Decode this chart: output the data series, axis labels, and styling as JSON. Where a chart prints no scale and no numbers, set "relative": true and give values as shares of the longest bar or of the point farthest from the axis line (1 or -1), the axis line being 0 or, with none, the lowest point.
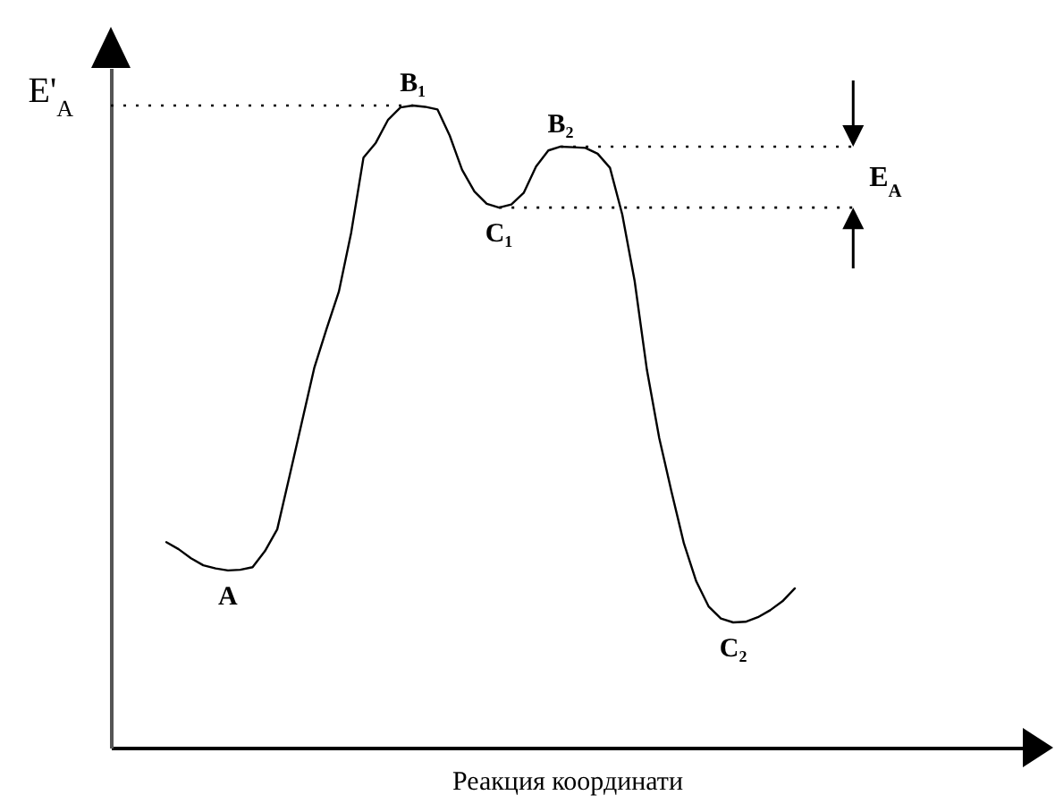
{
  "chart_data": {
    "type": "line",
    "relative": true,
    "xlabel": "Реакция координати",
    "color": "#000000",
    "line_style": "solid",
    "categories": [
      null,
      null,
      null,
      null,
      null,
      null,
      null,
      null,
      null,
      null,
      null,
      null,
      null,
      null,
      null,
      null,
      null,
      null,
      null,
      null,
      null,
      null,
      null,
      null,
      null,
      null,
      null,
      null,
      null,
      null,
      null,
      null,
      null,
      null,
      null,
      null,
      null,
      null,
      null,
      null,
      null,
      null,
      null,
      null,
      null,
      null,
      null,
      null,
      null,
      null,
      null,
      null,
      null,
      null,
      null,
      null,
      null,
      null,
      null,
      null,
      null,
      null,
      null,
      null,
      null,
      null,
      null,
      null,
      null,
      null,
      null,
      null,
      null,
      null
    ],
    "values": [
      null,
      null,
      null,
      null,
      0.32,
      0.309,
      0.295,
      0.284,
      0.279,
      0.276,
      0.277,
      0.281,
      0.306,
      0.34,
      0.423,
      0.507,
      0.591,
      0.652,
      0.71,
      0.802,
      0.919,
      0.942,
      0.978,
      0.997,
      1,
      0.998,
      0.994,
      0.953,
      0.9,
      0.866,
      0.847,
      0.841,
      0.846,
      0.864,
      0.905,
      0.93,
      0.936,
      0.935,
      0.934,
      0.925,
      0.903,
      0.83,
      0.727,
      0.588,
      0.482,
      0.398,
      0.318,
      0.259,
      0.22,
      0.201,
      0.195,
      0.196,
      0.203,
      0.214,
      0.228,
      0.248,
      null,
      null,
      null,
      null,
      null,
      null,
      null,
      null,
      null,
      null,
      null,
      null,
      null,
      null,
      null,
      null,
      null,
      null
    ],
    "ref_lines": [
      {
        "axis": "y",
        "value": 1,
        "label": "E'$_{A}$",
        "color": "#000000",
        "line_style": "dotted"
      },
      {
        "axis": "y",
        "value": 0.936,
        "color": "#000000",
        "line_style": "dotted"
      },
      {
        "axis": "y",
        "value": 0.841,
        "color": "#000000",
        "line_style": "dotted"
      }
    ],
    "annotations": [
      {
        "text": "A",
        "y": 0.276
      },
      {
        "text": "B₁",
        "y": 1
      },
      {
        "text": "C₁",
        "y": 0.841
      },
      {
        "text": "B₂",
        "y": 0.936
      },
      {
        "text": "C₂",
        "y": 0.195
      },
      "E$_{A}$"
    ]
  }
}
